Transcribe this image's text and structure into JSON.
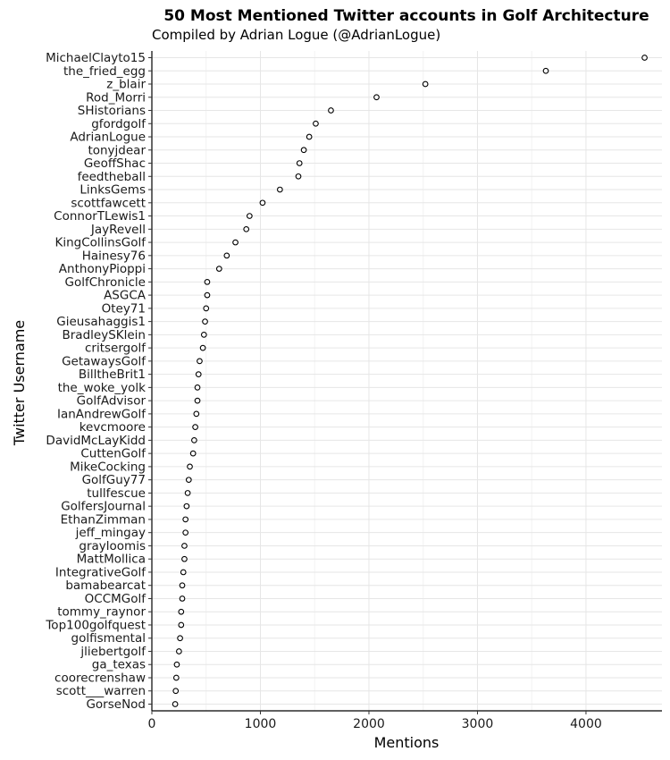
{
  "chart_data": {
    "type": "scatter",
    "title": "50 Most Mentioned Twitter accounts in Golf Architecture",
    "subtitle": "Compiled by Adrian Logue (@AdrianLogue)",
    "xlabel": "Mentions",
    "ylabel": "Twitter Username",
    "xlim": [
      0,
      4700
    ],
    "xticks": [
      0,
      1000,
      2000,
      3000,
      4000
    ],
    "grid": true,
    "categories": [
      "MichaelClayto15",
      "the_fried_egg",
      "z_blair",
      "Rod_Morri",
      "SHistorians",
      "gfordgolf",
      "AdrianLogue",
      "tonyjdear",
      "GeoffShac",
      "feedtheball",
      "LinksGems",
      "scottfawcett",
      "ConnorTLewis1",
      "JayRevell",
      "KingCollinsGolf",
      "Hainesy76",
      "AnthonyPioppi",
      "GolfChronicle",
      "ASGCA",
      "Otey71",
      "Gieusahaggis1",
      "BradleySKlein",
      "critsergolf",
      "GetawaysGolf",
      "BilltheBrit1",
      "the_woke_yolk",
      "GolfAdvisor",
      "IanAndrewGolf",
      "kevcmoore",
      "DavidMcLayKidd",
      "CuttenGolf",
      "MikeCocking",
      "GolfGuy77",
      "tullfescue",
      "GolfersJournal",
      "EthanZimman",
      "jeff_mingay",
      "grayloomis",
      "MattMollica",
      "IntegrativeGolf",
      "bamabearcat",
      "OCCMGolf",
      "tommy_raynor",
      "Top100golfquest",
      "golfismental",
      "jliebertgolf",
      "ga_texas",
      "coorecrenshaw",
      "scott___warren",
      "GorseNod"
    ],
    "values": [
      4540,
      3630,
      2520,
      2070,
      1650,
      1510,
      1450,
      1400,
      1360,
      1350,
      1180,
      1020,
      900,
      870,
      770,
      690,
      620,
      510,
      510,
      500,
      490,
      480,
      470,
      440,
      430,
      420,
      420,
      410,
      400,
      390,
      380,
      350,
      340,
      330,
      320,
      310,
      310,
      300,
      300,
      290,
      280,
      280,
      270,
      270,
      260,
      250,
      230,
      225,
      220,
      215
    ]
  }
}
